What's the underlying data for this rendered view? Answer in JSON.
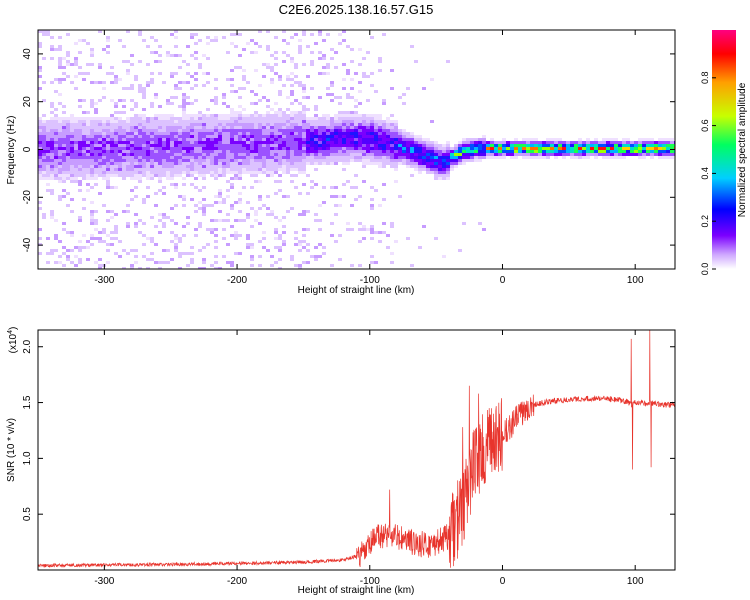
{
  "figure": {
    "title": "C2E6.2025.138.16.57.G15"
  },
  "chart_data": [
    {
      "type": "heatmap",
      "title": "C2E6.2025.138.16.57.G15",
      "xlabel": "Height of straight line (km)",
      "ylabel": "Frequency (Hz)",
      "xlim": [
        -350,
        130
      ],
      "ylim": [
        -50,
        50
      ],
      "xticks": [
        -300,
        -200,
        -100,
        0,
        100
      ],
      "xtick_labels": [
        "-300",
        "-200",
        "-100",
        "0",
        "100"
      ],
      "yticks": [
        -40,
        -20,
        0,
        20,
        40
      ],
      "ytick_labels": [
        "-40",
        "-20",
        "0",
        "20",
        "40"
      ],
      "ridge": {
        "x": [
          -350,
          -300,
          -250,
          -200,
          -150,
          -120,
          -100,
          -80,
          -60,
          -50,
          -45,
          -40,
          -30,
          -20,
          0,
          50,
          100,
          130
        ],
        "frequency": [
          1,
          1,
          2,
          3,
          4,
          5,
          5,
          2,
          -2,
          -4,
          -5,
          -3,
          0,
          1,
          1,
          1,
          1,
          1
        ]
      },
      "colorbar": {
        "label": "Normalized spectral amplitude",
        "range": [
          0.0,
          1.0
        ],
        "ticks": [
          0.0,
          0.2,
          0.4,
          0.6,
          0.8
        ],
        "tick_labels": [
          "0.0",
          "0.2",
          "0.4",
          "0.6",
          "0.8"
        ],
        "colors": [
          "#ffffff",
          "#cfa8ff",
          "#7b00ff",
          "#0000ff",
          "#00cfff",
          "#00ff60",
          "#c8ff00",
          "#ffa000",
          "#ff0000",
          "#ff0080"
        ]
      }
    },
    {
      "type": "line",
      "xlabel": "Height of straight line (km)",
      "ylabel": "SNR (10 * v/v)",
      "multiplier_label": "(x10",
      "multiplier_exp": "4",
      "multiplier_close": ")",
      "xlim": [
        -350,
        130
      ],
      "ylim": [
        0,
        2.15
      ],
      "xticks": [
        -300,
        -200,
        -100,
        0,
        100
      ],
      "xtick_labels": [
        "-300",
        "-200",
        "-100",
        "0",
        "100"
      ],
      "yticks": [
        0.5,
        1.0,
        1.5,
        2.0
      ],
      "ytick_labels": [
        "0.5",
        "1.0",
        "1.5",
        "2.0"
      ],
      "series": [
        {
          "name": "SNR",
          "color": "#e8342c",
          "x": [
            -350,
            -250,
            -200,
            -150,
            -120,
            -105,
            -95,
            -85,
            -70,
            -55,
            -40,
            -30,
            -25,
            -20,
            -10,
            0,
            10,
            20,
            30,
            50,
            75,
            90,
            95,
            97,
            100,
            105,
            110,
            112,
            115,
            120,
            130
          ],
          "y": [
            0.04,
            0.05,
            0.06,
            0.07,
            0.09,
            0.14,
            0.3,
            0.32,
            0.25,
            0.22,
            0.3,
            0.55,
            0.8,
            1.0,
            1.1,
            1.2,
            1.35,
            1.47,
            1.5,
            1.53,
            1.54,
            1.52,
            1.5,
            1.48,
            1.5,
            1.5,
            1.48,
            1.5,
            1.49,
            1.48,
            1.48
          ]
        }
      ],
      "spikes": [
        {
          "x": -85,
          "y": 0.72
        },
        {
          "x": -30,
          "y": 1.28
        },
        {
          "x": -25,
          "y": 1.65
        },
        {
          "x": -18,
          "y": 1.58
        },
        {
          "x": -10,
          "y": 1.45
        },
        {
          "x": 97,
          "y": 2.07
        },
        {
          "x": 98,
          "y": 0.9
        },
        {
          "x": 111,
          "y": 2.15
        },
        {
          "x": 112,
          "y": 0.92
        }
      ]
    }
  ]
}
